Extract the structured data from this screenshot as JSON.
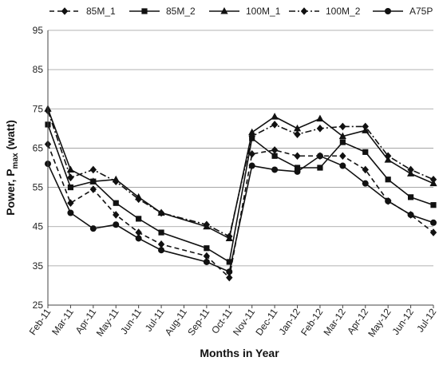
{
  "chart_data": {
    "type": "line",
    "title": "",
    "xlabel": "Months in Year",
    "ylabel_main": "Power, P",
    "ylabel_sub": "max",
    "ylabel_unit": " (watt)",
    "ylim": [
      25,
      95
    ],
    "yticks": [
      25,
      35,
      45,
      55,
      65,
      75,
      85,
      95
    ],
    "grid": "horizontal",
    "legend": "top",
    "categories": [
      "Feb-11",
      "Mar-11",
      "Apr-11",
      "May-11",
      "Jun-11",
      "Jul-11",
      "Aug-11",
      "Sep-11",
      "Oct-11",
      "Nov-11",
      "Dec-11",
      "Jan-12",
      "Feb-12",
      "Mar-12",
      "Apr-12",
      "May-12",
      "Jun-12",
      "Jul-12"
    ],
    "series": [
      {
        "name": "85M_1",
        "marker": "diamond",
        "dash": "dashed",
        "values": [
          66,
          51,
          54.5,
          48,
          43.5,
          40.5,
          null,
          37.5,
          32,
          63.5,
          64.5,
          63,
          63,
          63,
          59.5,
          51.5,
          48,
          43.5
        ]
      },
      {
        "name": "85M_2",
        "marker": "square",
        "dash": "solid",
        "values": [
          71,
          55,
          56.5,
          51,
          47,
          43.5,
          null,
          39.5,
          36,
          67.5,
          63,
          60,
          60,
          66.5,
          64,
          57,
          52.5,
          50.5
        ]
      },
      {
        "name": "100M_1",
        "marker": "triangle",
        "dash": "solid",
        "values": [
          75,
          59.5,
          56.5,
          57,
          52.5,
          48.5,
          null,
          45,
          42,
          69,
          73,
          70,
          72.5,
          68,
          69.5,
          62,
          58.5,
          56
        ]
      },
      {
        "name": "100M_2",
        "marker": "diamond",
        "dash": "dashdot",
        "values": [
          74.5,
          57.5,
          59.5,
          56.5,
          52,
          48.5,
          null,
          45.5,
          42.5,
          68,
          71,
          68.5,
          70,
          70.5,
          70.5,
          63,
          59.5,
          57
        ]
      },
      {
        "name": "A75P",
        "marker": "circle",
        "dash": "solid",
        "values": [
          61,
          48.5,
          44.5,
          45.5,
          42,
          39,
          null,
          36,
          33.5,
          60.5,
          59.5,
          59,
          63,
          60.5,
          56,
          51.5,
          48,
          46
        ]
      }
    ]
  }
}
